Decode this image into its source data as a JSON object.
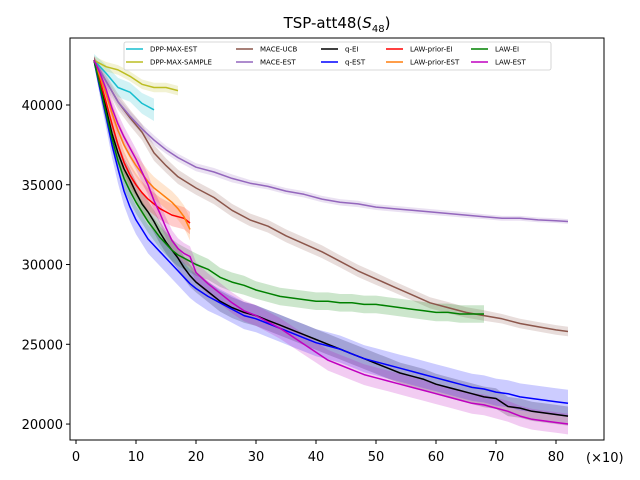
{
  "chart_data": {
    "type": "line",
    "title_prefix": "TSP-att48(",
    "title_math": "S",
    "title_sub": "48",
    "title_suffix": ")",
    "xlabel": "",
    "ylabel": "",
    "x_multiplier_label": "(×10)",
    "xlim": [
      -1,
      88
    ],
    "ylim": [
      19000,
      44200
    ],
    "xticks": [
      0,
      10,
      20,
      30,
      40,
      50,
      60,
      70,
      80
    ],
    "yticks": [
      20000,
      25000,
      30000,
      35000,
      40000
    ],
    "grid": false,
    "legend_position": "top",
    "series": [
      {
        "name": "DPP-MAX-EST",
        "color": "#17becf",
        "x": [
          3,
          5,
          7,
          9,
          11,
          13
        ],
        "y": [
          42800,
          42000,
          41100,
          40800,
          40100,
          39700
        ],
        "band": [
          400,
          500,
          600,
          600,
          650,
          700
        ]
      },
      {
        "name": "DPP-MAX-SAMPLE",
        "color": "#bcbd22",
        "x": [
          3,
          5,
          7,
          9,
          11,
          13,
          15,
          17
        ],
        "y": [
          42800,
          42400,
          42200,
          41800,
          41300,
          41100,
          41100,
          40900
        ],
        "band": [
          250,
          300,
          300,
          300,
          300,
          300,
          300,
          300
        ]
      },
      {
        "name": "MACE-UCB",
        "color": "#8c564b",
        "x": [
          3,
          5,
          7,
          9,
          11,
          13,
          15,
          17,
          20,
          23,
          26,
          29,
          32,
          35,
          38,
          41,
          44,
          47,
          50,
          53,
          56,
          59,
          62,
          65,
          68,
          71,
          74,
          77,
          80,
          82
        ],
        "y": [
          42800,
          41500,
          40200,
          39200,
          38300,
          37000,
          36200,
          35500,
          34800,
          34200,
          33400,
          32800,
          32400,
          31800,
          31300,
          30800,
          30200,
          29600,
          29100,
          28600,
          28100,
          27600,
          27300,
          27000,
          26800,
          26600,
          26300,
          26100,
          25900,
          25800
        ],
        "band": [
          200,
          400,
          500,
          500,
          500,
          500,
          450,
          450,
          420,
          420,
          400,
          400,
          400,
          400,
          400,
          400,
          380,
          380,
          380,
          350,
          350,
          350,
          350,
          330,
          330,
          300,
          300,
          300,
          300,
          300
        ]
      },
      {
        "name": "MACE-EST",
        "color": "#9467bd",
        "x": [
          3,
          5,
          7,
          9,
          11,
          13,
          15,
          17,
          20,
          23,
          26,
          29,
          32,
          35,
          38,
          41,
          44,
          47,
          50,
          53,
          56,
          59,
          62,
          65,
          68,
          71,
          74,
          77,
          80,
          82
        ],
        "y": [
          42800,
          41500,
          40200,
          39300,
          38500,
          37800,
          37200,
          36700,
          36100,
          35800,
          35400,
          35100,
          34900,
          34600,
          34400,
          34100,
          33900,
          33800,
          33600,
          33500,
          33400,
          33300,
          33200,
          33100,
          33000,
          32900,
          32900,
          32800,
          32750,
          32700
        ],
        "band": [
          200,
          300,
          300,
          300,
          300,
          300,
          250,
          250,
          250,
          250,
          250,
          200,
          200,
          200,
          200,
          200,
          200,
          200,
          180,
          180,
          180,
          180,
          180,
          180,
          150,
          150,
          150,
          150,
          150,
          150
        ]
      },
      {
        "name": "q-EI",
        "color": "#000000",
        "x": [
          3,
          4,
          5,
          6,
          7,
          8,
          9,
          10,
          11,
          12,
          13,
          14,
          15,
          16,
          17,
          18,
          19,
          20,
          22,
          24,
          26,
          28,
          30,
          32,
          34,
          36,
          38,
          40,
          42,
          44,
          46,
          48,
          50,
          52,
          54,
          56,
          58,
          60,
          62,
          64,
          66,
          68,
          70,
          72,
          74,
          76,
          78,
          80,
          82
        ],
        "y": [
          42800,
          41300,
          39800,
          38200,
          37000,
          36000,
          35300,
          34500,
          33800,
          33300,
          32700,
          32000,
          31400,
          30900,
          30400,
          29800,
          29300,
          28900,
          28300,
          27700,
          27300,
          27000,
          26800,
          26500,
          26200,
          25900,
          25600,
          25300,
          25000,
          24700,
          24400,
          24100,
          23800,
          23500,
          23200,
          23000,
          22800,
          22500,
          22300,
          22100,
          21900,
          21700,
          21600,
          21100,
          21000,
          20800,
          20700,
          20600,
          20500
        ],
        "band": [
          250,
          500,
          600,
          700,
          700,
          700,
          700,
          700,
          700,
          700,
          700,
          700,
          700,
          700,
          700,
          700,
          700,
          650,
          650,
          650,
          650,
          650,
          650,
          650,
          650,
          650,
          650,
          650,
          650,
          650,
          650,
          650,
          650,
          650,
          650,
          650,
          650,
          650,
          650,
          650,
          650,
          650,
          650,
          600,
          600,
          600,
          600,
          600,
          600
        ]
      },
      {
        "name": "q-EST",
        "color": "#0000ff",
        "x": [
          3,
          4,
          5,
          6,
          7,
          8,
          9,
          10,
          11,
          12,
          13,
          14,
          15,
          16,
          17,
          18,
          19,
          20,
          22,
          24,
          26,
          28,
          30,
          32,
          34,
          36,
          38,
          40,
          42,
          44,
          46,
          48,
          50,
          52,
          54,
          56,
          58,
          60,
          62,
          64,
          66,
          68,
          70,
          72,
          74,
          76,
          78,
          80,
          82
        ],
        "y": [
          42800,
          41000,
          39300,
          37500,
          36000,
          34600,
          33600,
          32800,
          32200,
          31600,
          31200,
          30800,
          30400,
          30000,
          29600,
          29200,
          28800,
          28500,
          28000,
          27600,
          27200,
          26800,
          26600,
          26300,
          26000,
          25700,
          25400,
          25100,
          24900,
          24700,
          24400,
          24100,
          23900,
          23700,
          23500,
          23300,
          23100,
          22900,
          22700,
          22500,
          22300,
          22200,
          22000,
          21900,
          21700,
          21600,
          21500,
          21400,
          21300
        ],
        "band": [
          250,
          500,
          700,
          800,
          900,
          900,
          900,
          900,
          900,
          900,
          900,
          900,
          900,
          900,
          900,
          900,
          900,
          900,
          900,
          850,
          850,
          850,
          850,
          850,
          850,
          850,
          850,
          850,
          850,
          850,
          850,
          850,
          850,
          850,
          850,
          850,
          850,
          850,
          850,
          850,
          850,
          850,
          850,
          850,
          850,
          850,
          850,
          850,
          850
        ]
      },
      {
        "name": "LAW-prior-EI",
        "color": "#ff0000",
        "x": [
          3,
          4,
          5,
          6,
          7,
          8,
          9,
          10,
          11,
          12,
          13,
          14,
          15,
          16,
          17,
          18,
          19
        ],
        "y": [
          42800,
          41500,
          40200,
          38800,
          37500,
          36400,
          35600,
          35000,
          34500,
          34100,
          33800,
          33500,
          33300,
          33100,
          33000,
          32900,
          32600
        ],
        "band": [
          250,
          500,
          600,
          700,
          700,
          700,
          700,
          700,
          700,
          700,
          700,
          700,
          700,
          700,
          700,
          700,
          700
        ]
      },
      {
        "name": "LAW-prior-EST",
        "color": "#ff7f0e",
        "x": [
          3,
          4,
          5,
          6,
          7,
          8,
          9,
          10,
          11,
          12,
          13,
          14,
          15,
          16,
          17,
          18,
          19
        ],
        "y": [
          42800,
          41800,
          40700,
          39500,
          38400,
          37500,
          36800,
          36200,
          35700,
          35200,
          34800,
          34500,
          34200,
          33900,
          33500,
          33000,
          32200
        ],
        "band": [
          250,
          450,
          550,
          650,
          700,
          700,
          700,
          700,
          700,
          700,
          700,
          700,
          700,
          700,
          700,
          700,
          700
        ]
      },
      {
        "name": "LAW-EI",
        "color": "#008000",
        "x": [
          3,
          4,
          5,
          6,
          7,
          8,
          9,
          10,
          11,
          12,
          13,
          14,
          15,
          16,
          17,
          18,
          19,
          20,
          22,
          24,
          26,
          28,
          30,
          32,
          34,
          36,
          38,
          40,
          42,
          44,
          46,
          48,
          50,
          52,
          54,
          56,
          58,
          60,
          62,
          64,
          66,
          68
        ],
        "y": [
          42800,
          41200,
          39500,
          37900,
          36500,
          35400,
          34600,
          33900,
          33300,
          32700,
          32200,
          31700,
          31300,
          30900,
          30600,
          30400,
          30200,
          30000,
          29700,
          29200,
          28900,
          28700,
          28400,
          28200,
          28000,
          27900,
          27800,
          27700,
          27700,
          27600,
          27600,
          27500,
          27500,
          27400,
          27300,
          27200,
          27100,
          27000,
          27000,
          26900,
          26900,
          26900
        ],
        "band": [
          250,
          500,
          600,
          700,
          700,
          700,
          700,
          700,
          700,
          700,
          700,
          700,
          700,
          700,
          700,
          700,
          700,
          700,
          650,
          600,
          600,
          600,
          550,
          550,
          550,
          550,
          550,
          550,
          550,
          550,
          550,
          550,
          550,
          550,
          550,
          550,
          550,
          550,
          550,
          550,
          550,
          550
        ]
      },
      {
        "name": "LAW-EST",
        "color": "#c000c0",
        "x": [
          3,
          4,
          5,
          6,
          7,
          8,
          9,
          10,
          11,
          12,
          13,
          14,
          15,
          16,
          17,
          18,
          19,
          20,
          22,
          24,
          26,
          28,
          30,
          32,
          34,
          36,
          38,
          40,
          42,
          44,
          46,
          48,
          50,
          52,
          54,
          56,
          58,
          60,
          62,
          64,
          66,
          68,
          70,
          72,
          74,
          76,
          78,
          80,
          82
        ],
        "y": [
          42800,
          42000,
          41000,
          39800,
          38800,
          38000,
          37300,
          36600,
          35800,
          35000,
          34000,
          33200,
          32300,
          31500,
          31000,
          30700,
          30500,
          29500,
          28800,
          28200,
          27600,
          27100,
          26800,
          26400,
          26000,
          25500,
          25000,
          24500,
          24000,
          23700,
          23400,
          23100,
          22900,
          22700,
          22500,
          22300,
          22100,
          21900,
          21700,
          21500,
          21300,
          21200,
          21000,
          20800,
          20500,
          20300,
          20200,
          20100,
          20000
        ],
        "band": [
          250,
          450,
          550,
          600,
          650,
          650,
          650,
          650,
          650,
          650,
          650,
          650,
          650,
          650,
          650,
          650,
          650,
          650,
          650,
          650,
          650,
          650,
          650,
          650,
          650,
          650,
          650,
          650,
          650,
          650,
          650,
          650,
          650,
          650,
          650,
          650,
          650,
          650,
          650,
          650,
          650,
          650,
          650,
          650,
          650,
          650,
          650,
          650,
          650
        ]
      }
    ]
  }
}
